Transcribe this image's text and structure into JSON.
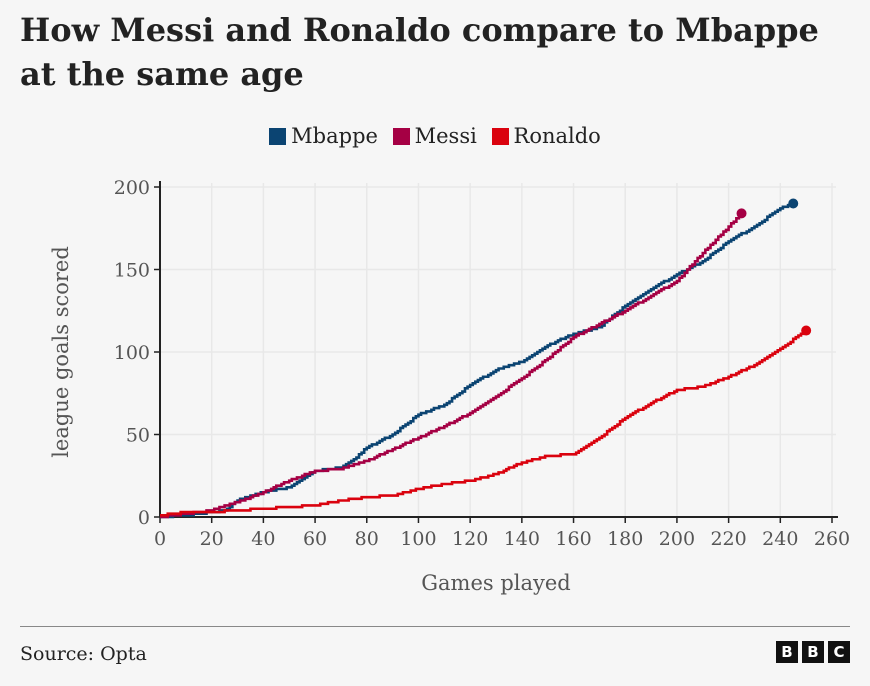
{
  "chart_data": {
    "type": "line",
    "title": "How Messi and Ronaldo compare to Mbappe at the same age",
    "xlabel": "Games played",
    "ylabel": "league goals scored",
    "xlim": [
      0,
      260
    ],
    "ylim": [
      0,
      200
    ],
    "xticks": [
      0,
      20,
      40,
      60,
      80,
      100,
      120,
      140,
      160,
      180,
      200,
      220,
      240,
      260
    ],
    "yticks": [
      0,
      50,
      100,
      150,
      200
    ],
    "grid": true,
    "legend": "top",
    "series": [
      {
        "name": "Mbappe",
        "color": "#0b4472",
        "x": [
          0,
          10,
          20,
          25,
          30,
          40,
          50,
          60,
          70,
          75,
          80,
          90,
          100,
          110,
          120,
          130,
          140,
          150,
          160,
          170,
          180,
          190,
          200,
          210,
          220,
          230,
          240,
          245
        ],
        "y": [
          0,
          1,
          3,
          4,
          10,
          15,
          18,
          28,
          30,
          35,
          42,
          50,
          62,
          68,
          80,
          89,
          94,
          104,
          111,
          115,
          128,
          138,
          147,
          155,
          167,
          176,
          187,
          190
        ]
      },
      {
        "name": "Messi",
        "color": "#a50044",
        "x": [
          0,
          10,
          20,
          30,
          40,
          50,
          60,
          70,
          80,
          90,
          100,
          110,
          120,
          130,
          140,
          150,
          160,
          170,
          180,
          190,
          200,
          210,
          220,
          225
        ],
        "y": [
          0,
          2,
          4,
          9,
          15,
          22,
          28,
          29,
          34,
          41,
          48,
          55,
          63,
          73,
          84,
          96,
          109,
          117,
          125,
          134,
          143,
          160,
          176,
          184
        ]
      },
      {
        "name": "Ronaldo",
        "color": "#da020e",
        "x": [
          0,
          10,
          20,
          30,
          40,
          50,
          60,
          70,
          80,
          90,
          100,
          110,
          120,
          130,
          140,
          150,
          160,
          170,
          180,
          190,
          200,
          210,
          220,
          230,
          240,
          250
        ],
        "y": [
          1,
          3,
          3,
          4,
          5,
          6,
          7,
          10,
          12,
          13,
          17,
          20,
          22,
          26,
          33,
          37,
          38,
          48,
          60,
          69,
          77,
          79,
          85,
          92,
          102,
          113
        ]
      }
    ]
  },
  "source": "Source: Opta",
  "logo": [
    "B",
    "B",
    "C"
  ]
}
